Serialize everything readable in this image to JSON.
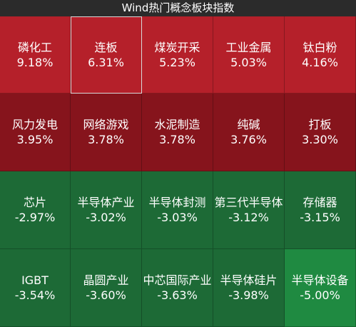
{
  "title": "Wind热门概念板块指数",
  "colors": {
    "red_strong": "#b5202a",
    "red_dark": "#86141c",
    "green_mid": "#1d6a36",
    "green_bright": "#1f8a41"
  },
  "tiles": [
    {
      "name": "磷化工",
      "pct": "9.18%",
      "color": "#b5202a"
    },
    {
      "name": "连板",
      "pct": "6.31%",
      "color": "#b5202a",
      "selected": true
    },
    {
      "name": "煤炭开采",
      "pct": "5.23%",
      "color": "#b5202a"
    },
    {
      "name": "工业金属",
      "pct": "5.03%",
      "color": "#b5202a"
    },
    {
      "name": "钛白粉",
      "pct": "4.16%",
      "color": "#b5202a"
    },
    {
      "name": "风力发电",
      "pct": "3.95%",
      "color": "#86141c"
    },
    {
      "name": "网络游戏",
      "pct": "3.78%",
      "color": "#86141c"
    },
    {
      "name": "水泥制造",
      "pct": "3.78%",
      "color": "#86141c"
    },
    {
      "name": "纯碱",
      "pct": "3.76%",
      "color": "#86141c"
    },
    {
      "name": "打板",
      "pct": "3.30%",
      "color": "#86141c"
    },
    {
      "name": "芯片",
      "pct": "-2.97%",
      "color": "#1d6a36"
    },
    {
      "name": "半导体产业",
      "pct": "-3.02%",
      "color": "#1d6a36"
    },
    {
      "name": "半导体封测",
      "pct": "-3.03%",
      "color": "#1d6a36"
    },
    {
      "name": "第三代半导体",
      "pct": "-3.12%",
      "color": "#1d6a36"
    },
    {
      "name": "存储器",
      "pct": "-3.15%",
      "color": "#1d6a36"
    },
    {
      "name": "IGBT",
      "pct": "-3.54%",
      "color": "#1d6a36"
    },
    {
      "name": "晶圆产业",
      "pct": "-3.60%",
      "color": "#1d6a36"
    },
    {
      "name": "中芯国际产业",
      "pct": "-3.63%",
      "color": "#1d6a36"
    },
    {
      "name": "半导体硅片",
      "pct": "-3.98%",
      "color": "#1d6a36"
    },
    {
      "name": "半导体设备",
      "pct": "-5.00%",
      "color": "#1f8a41"
    }
  ]
}
